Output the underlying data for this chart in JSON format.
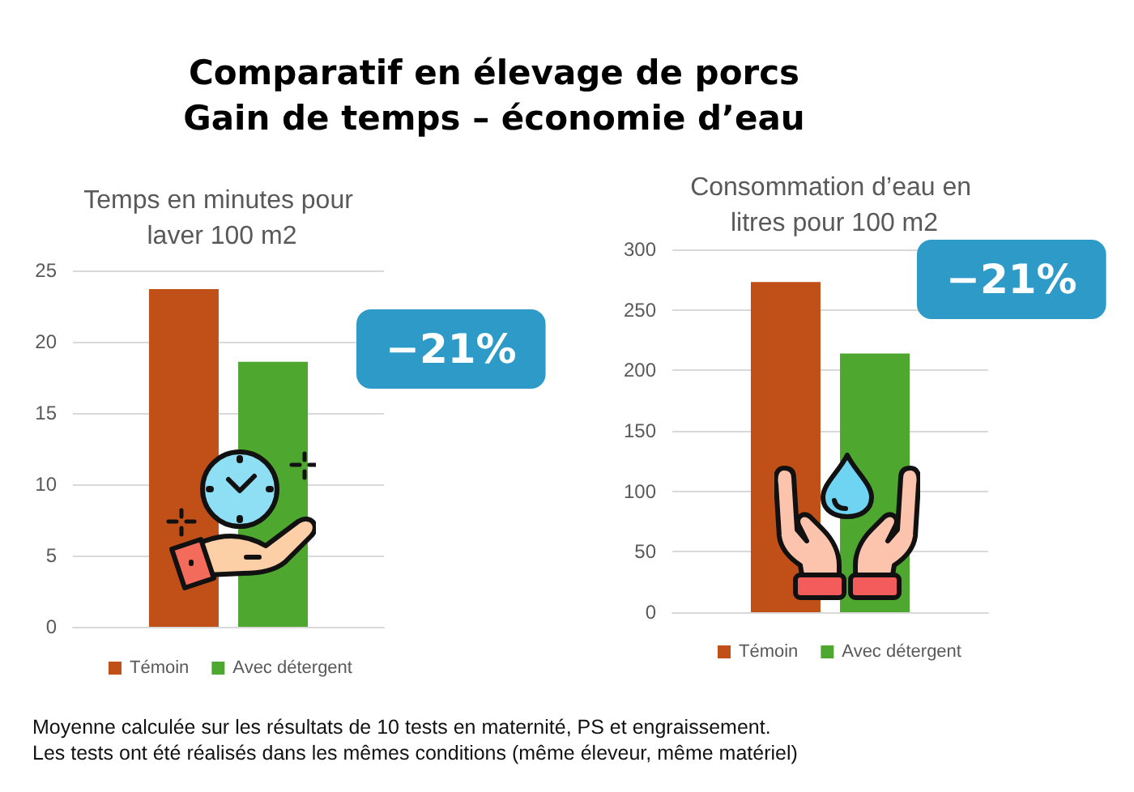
{
  "chart_data": [
    {
      "type": "other",
      "title": "Comparatif en élevage de porcs",
      "subtitle": "Gain de temps – économie d’eau"
    },
    {
      "type": "bar",
      "title": "Temps en minutes pour laver 100 m2",
      "categories": [
        null
      ],
      "series": [
        {
          "name": "Témoin",
          "color": "#c05017",
          "values": [
            23.7
          ]
        },
        {
          "name": "Avec détergent",
          "color": "#4ea72e",
          "values": [
            18.6
          ]
        }
      ],
      "ylim": [
        0,
        25
      ],
      "yticks": [
        0,
        5,
        10,
        15,
        20,
        25
      ],
      "grid": "y",
      "legend": "bottom",
      "tick_labels": "y",
      "annotations": [
        "−21%"
      ]
    },
    {
      "type": "bar",
      "title": "Consommation d’eau en litres pour 100 m2",
      "categories": [
        null
      ],
      "series": [
        {
          "name": "Témoin",
          "color": "#c05017",
          "values": [
            273
          ]
        },
        {
          "name": "Avec détergent",
          "color": "#4ea72e",
          "values": [
            214
          ]
        }
      ],
      "ylim": [
        0,
        300
      ],
      "yticks": [
        0,
        50,
        100,
        150,
        200,
        250,
        300
      ],
      "grid": "y",
      "legend": "bottom",
      "tick_labels": "y",
      "annotations": [
        "−21%"
      ]
    },
    {
      "type": "other",
      "annotations": [
        "Moyenne calculée sur les résultats de 10 tests en maternité, PS et engraissement.",
        "Les tests ont été réalisés dans les mêmes conditions (même éleveur, même matériel)"
      ]
    }
  ]
}
